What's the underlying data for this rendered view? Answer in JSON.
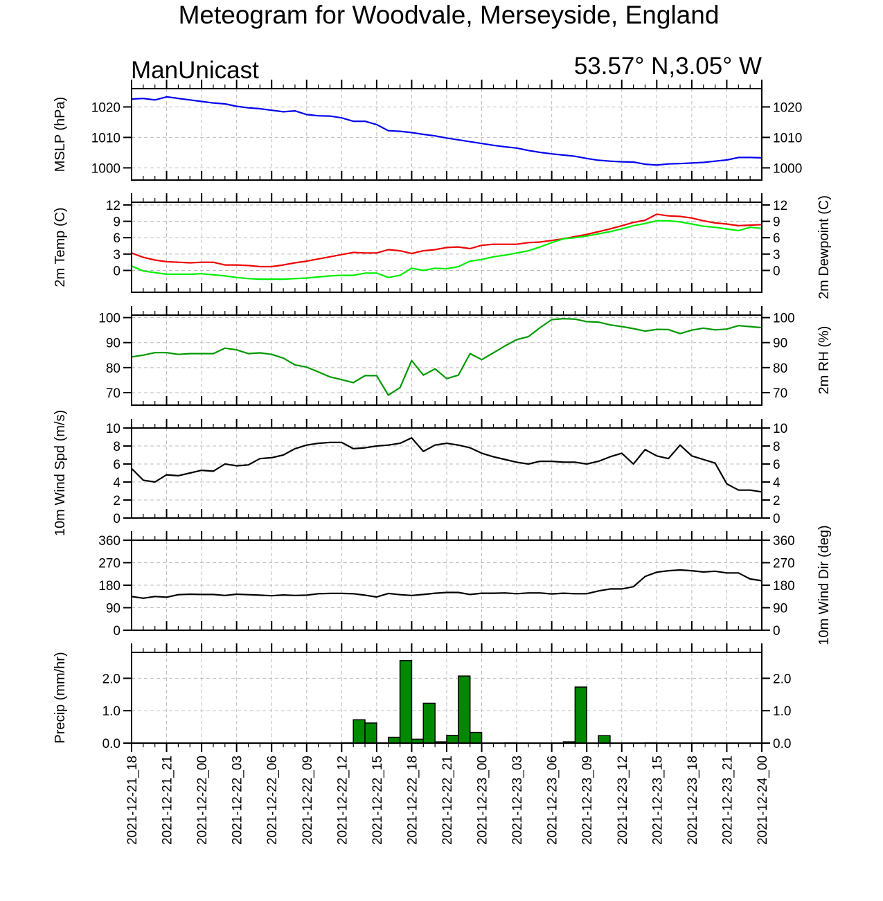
{
  "title": "Meteogram for Woodvale, Merseyside, England",
  "model": "ManUnicast",
  "location": "53.57° N,3.05° W",
  "time_labels": [
    "2021-12-21_18",
    "2021-12-21_21",
    "2021-12-22_00",
    "2021-12-22_03",
    "2021-12-22_06",
    "2021-12-22_09",
    "2021-12-22_12",
    "2021-12-22_15",
    "2021-12-22_18",
    "2021-12-22_21",
    "2021-12-23_00",
    "2021-12-23_03",
    "2021-12-23_06",
    "2021-12-23_09",
    "2021-12-23_12",
    "2021-12-23_15",
    "2021-12-23_18",
    "2021-12-23_21",
    "2021-12-24_00"
  ],
  "colors": {
    "mslp": "#0000ee",
    "temp": "#ee0000",
    "dewpoint": "#00ee00",
    "rh": "#009900",
    "wind": "#000000",
    "precip_fill": "#008800",
    "grid": "#bbbbbb"
  },
  "chart_data": [
    {
      "type": "line",
      "name": "mslp",
      "ylabel": "MSLP (hPa)",
      "ylabel_right": "",
      "ylim": [
        996,
        1026
      ],
      "yticks": [
        1000,
        1010,
        1020
      ],
      "x_hours_range": [
        0,
        54
      ],
      "series": [
        {
          "name": "MSLP",
          "color_key": "mslp",
          "x": [
            0,
            1,
            2,
            3,
            4,
            5,
            6,
            7,
            8,
            9,
            10,
            11,
            12,
            13,
            14,
            15,
            16,
            17,
            18,
            19,
            20,
            21,
            22,
            23,
            24,
            25,
            26,
            27,
            28,
            29,
            30,
            31,
            32,
            33,
            34,
            35,
            36,
            37,
            38,
            39,
            40,
            41,
            42,
            43,
            44,
            45,
            46,
            47,
            48,
            49,
            50,
            51,
            52,
            53,
            54
          ],
          "values": [
            1022.6,
            1022.8,
            1022.3,
            1023.3,
            1022.8,
            1022.3,
            1021.8,
            1021.3,
            1021.0,
            1020.2,
            1019.7,
            1019.4,
            1018.9,
            1018.4,
            1018.7,
            1017.5,
            1017.1,
            1017.0,
            1016.4,
            1015.3,
            1015.3,
            1014.2,
            1012.2,
            1012.0,
            1011.6,
            1011.0,
            1010.5,
            1009.8,
            1009.2,
            1008.6,
            1008.0,
            1007.4,
            1006.9,
            1006.5,
            1005.7,
            1005.1,
            1004.6,
            1004.2,
            1003.8,
            1003.1,
            1002.5,
            1002.2,
            1002.0,
            1001.9,
            1001.2,
            1000.9,
            1001.3,
            1001.4,
            1001.6,
            1001.8,
            1002.2,
            1002.6,
            1003.4,
            1003.4,
            1003.3
          ]
        }
      ]
    },
    {
      "type": "line",
      "name": "temperature",
      "ylabel": "2m Temp (C)",
      "ylabel_right": "2m Dewpoint (C)",
      "ylim": [
        -4,
        12.5
      ],
      "yticks": [
        0,
        3,
        6,
        9,
        12
      ],
      "x_hours_range": [
        0,
        54
      ],
      "series": [
        {
          "name": "2m Temp",
          "color_key": "temp",
          "x": [
            0,
            1,
            2,
            3,
            4,
            5,
            6,
            7,
            8,
            9,
            10,
            11,
            12,
            13,
            14,
            15,
            16,
            17,
            18,
            19,
            20,
            21,
            22,
            23,
            24,
            25,
            26,
            27,
            28,
            29,
            30,
            31,
            32,
            33,
            34,
            35,
            36,
            37,
            38,
            39,
            40,
            41,
            42,
            43,
            44,
            45,
            46,
            47,
            48,
            49,
            50,
            51,
            52,
            53,
            54
          ],
          "values": [
            3.2,
            2.4,
            1.9,
            1.6,
            1.5,
            1.4,
            1.5,
            1.5,
            1.0,
            1.0,
            0.9,
            0.7,
            0.7,
            1.0,
            1.4,
            1.7,
            2.1,
            2.5,
            2.9,
            3.3,
            3.2,
            3.2,
            3.8,
            3.6,
            3.1,
            3.6,
            3.8,
            4.2,
            4.3,
            4.0,
            4.6,
            4.8,
            4.8,
            4.8,
            5.1,
            5.2,
            5.5,
            5.8,
            6.2,
            6.6,
            7.1,
            7.6,
            8.2,
            8.8,
            9.2,
            10.3,
            10.0,
            9.9,
            9.6,
            9.1,
            8.7,
            8.5,
            8.2,
            8.3,
            8.4
          ]
        },
        {
          "name": "2m Dewpoint",
          "color_key": "dewpoint",
          "x": [
            0,
            1,
            2,
            3,
            4,
            5,
            6,
            7,
            8,
            9,
            10,
            11,
            12,
            13,
            14,
            15,
            16,
            17,
            18,
            19,
            20,
            21,
            22,
            23,
            24,
            25,
            26,
            27,
            28,
            29,
            30,
            31,
            32,
            33,
            34,
            35,
            36,
            37,
            38,
            39,
            40,
            41,
            42,
            43,
            44,
            45,
            46,
            47,
            48,
            49,
            50,
            51,
            52,
            53,
            54
          ],
          "values": [
            0.8,
            -0.1,
            -0.4,
            -0.7,
            -0.7,
            -0.7,
            -0.6,
            -0.8,
            -1.0,
            -1.3,
            -1.5,
            -1.6,
            -1.6,
            -1.6,
            -1.5,
            -1.4,
            -1.2,
            -1.0,
            -0.9,
            -0.9,
            -0.5,
            -0.5,
            -1.3,
            -0.9,
            0.4,
            0.0,
            0.4,
            0.3,
            0.7,
            1.7,
            2.0,
            2.5,
            2.8,
            3.2,
            3.6,
            4.3,
            5.1,
            5.8,
            6.0,
            6.3,
            6.7,
            7.1,
            7.6,
            8.2,
            8.6,
            9.1,
            9.1,
            8.9,
            8.5,
            8.1,
            7.9,
            7.6,
            7.3,
            7.9,
            7.7
          ]
        }
      ]
    },
    {
      "type": "line",
      "name": "relative_humidity",
      "ylabel": "",
      "ylabel_right": "2m RH (%)",
      "ylim": [
        65,
        101
      ],
      "yticks": [
        70,
        80,
        90,
        100
      ],
      "x_hours_range": [
        0,
        54
      ],
      "series": [
        {
          "name": "2m RH",
          "color_key": "rh",
          "x": [
            0,
            1,
            2,
            3,
            4,
            5,
            6,
            7,
            8,
            9,
            10,
            11,
            12,
            13,
            14,
            15,
            16,
            17,
            18,
            19,
            20,
            21,
            22,
            23,
            24,
            25,
            26,
            27,
            28,
            29,
            30,
            31,
            32,
            33,
            34,
            35,
            36,
            37,
            38,
            39,
            40,
            41,
            42,
            43,
            44,
            45,
            46,
            47,
            48,
            49,
            50,
            51,
            52,
            53,
            54
          ],
          "values": [
            84.3,
            85.0,
            86.0,
            86.0,
            85.3,
            85.6,
            85.6,
            85.6,
            87.8,
            87.1,
            85.6,
            85.9,
            85.3,
            83.8,
            81.1,
            80.2,
            78.3,
            76.3,
            75.2,
            74.0,
            76.8,
            76.8,
            69.0,
            72.0,
            82.8,
            77.0,
            79.5,
            75.6,
            77.0,
            85.6,
            83.2,
            85.9,
            88.7,
            91.2,
            92.4,
            96.0,
            99.2,
            99.6,
            99.4,
            98.4,
            98.2,
            97.1,
            96.4,
            95.6,
            94.6,
            95.3,
            95.2,
            93.6,
            95.0,
            95.8,
            95.1,
            95.4,
            96.8,
            96.4,
            96.0
          ]
        }
      ]
    },
    {
      "type": "line",
      "name": "wind_speed",
      "ylabel": "10m Wind Spd (m/s)",
      "ylabel_right": "",
      "ylim": [
        0,
        10
      ],
      "yticks": [
        0,
        2,
        4,
        6,
        8,
        10
      ],
      "x_hours_range": [
        0,
        54
      ],
      "series": [
        {
          "name": "10m Wind Spd",
          "color_key": "wind",
          "x": [
            0,
            1,
            2,
            3,
            4,
            5,
            6,
            7,
            8,
            9,
            10,
            11,
            12,
            13,
            14,
            15,
            16,
            17,
            18,
            19,
            20,
            21,
            22,
            23,
            24,
            25,
            26,
            27,
            28,
            29,
            30,
            31,
            32,
            33,
            34,
            35,
            36,
            37,
            38,
            39,
            40,
            41,
            42,
            43,
            44,
            45,
            46,
            47,
            48,
            49,
            50,
            51,
            52,
            53,
            54
          ],
          "values": [
            5.5,
            4.2,
            4.0,
            4.8,
            4.7,
            5.0,
            5.3,
            5.2,
            6.0,
            5.8,
            5.9,
            6.6,
            6.7,
            7.0,
            7.7,
            8.1,
            8.3,
            8.4,
            8.4,
            7.7,
            7.8,
            8.0,
            8.1,
            8.3,
            8.9,
            7.4,
            8.1,
            8.3,
            8.1,
            7.8,
            7.2,
            6.8,
            6.5,
            6.2,
            6.0,
            6.3,
            6.3,
            6.2,
            6.2,
            6.0,
            6.3,
            6.8,
            7.2,
            6.0,
            7.6,
            6.9,
            6.6,
            8.1,
            6.9,
            6.5,
            6.1,
            3.8,
            3.1,
            3.1,
            2.9
          ]
        }
      ]
    },
    {
      "type": "line",
      "name": "wind_direction",
      "ylabel": "",
      "ylabel_right": "10m Wind Dir (deg)",
      "ylim": [
        0,
        360
      ],
      "yticks": [
        0,
        90,
        180,
        270,
        360
      ],
      "x_hours_range": [
        0,
        54
      ],
      "series": [
        {
          "name": "10m Wind Dir",
          "color_key": "wind",
          "x": [
            0,
            1,
            2,
            3,
            4,
            5,
            6,
            7,
            8,
            9,
            10,
            11,
            12,
            13,
            14,
            15,
            16,
            17,
            18,
            19,
            20,
            21,
            22,
            23,
            24,
            25,
            26,
            27,
            28,
            29,
            30,
            31,
            32,
            33,
            34,
            35,
            36,
            37,
            38,
            39,
            40,
            41,
            42,
            43,
            44,
            45,
            46,
            47,
            48,
            49,
            50,
            51,
            52,
            53,
            54
          ],
          "values": [
            135,
            128,
            135,
            132,
            142,
            144,
            143,
            143,
            139,
            144,
            142,
            140,
            138,
            141,
            139,
            140,
            146,
            147,
            147,
            146,
            140,
            133,
            147,
            142,
            139,
            143,
            148,
            151,
            151,
            143,
            148,
            148,
            149,
            146,
            149,
            149,
            145,
            148,
            146,
            146,
            157,
            165,
            165,
            174,
            215,
            232,
            238,
            241,
            238,
            233,
            236,
            229,
            229,
            205,
            198
          ]
        }
      ]
    },
    {
      "type": "bar",
      "name": "precipitation",
      "ylabel": "Precip (mm/hr)",
      "ylabel_right": "",
      "ylim": [
        0,
        2.8
      ],
      "yticks": [
        0.0,
        1.0,
        2.0
      ],
      "ytick_labels": [
        "0.0",
        "1.0",
        "2.0"
      ],
      "x_hours_range": [
        0,
        54
      ],
      "bars": [
        {
          "hour": 19,
          "value": 0.01
        },
        {
          "hour": 20,
          "value": 0.72
        },
        {
          "hour": 21,
          "value": 0.62
        },
        {
          "hour": 22,
          "value": 0.01
        },
        {
          "hour": 23,
          "value": 0.18
        },
        {
          "hour": 24,
          "value": 2.55
        },
        {
          "hour": 25,
          "value": 0.12
        },
        {
          "hour": 26,
          "value": 1.23
        },
        {
          "hour": 27,
          "value": 0.04
        },
        {
          "hour": 28,
          "value": 0.24
        },
        {
          "hour": 29,
          "value": 2.07
        },
        {
          "hour": 30,
          "value": 0.33
        },
        {
          "hour": 33,
          "value": 0.01
        },
        {
          "hour": 38,
          "value": 0.04
        },
        {
          "hour": 39,
          "value": 1.73
        },
        {
          "hour": 41,
          "value": 0.23
        },
        {
          "hour": 45,
          "value": 0.01
        }
      ]
    }
  ]
}
